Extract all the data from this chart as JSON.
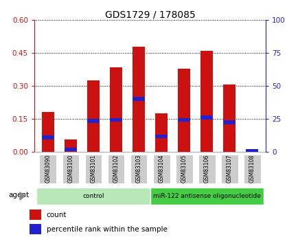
{
  "title": "GDS1729 / 178085",
  "samples": [
    "GSM83090",
    "GSM83100",
    "GSM83101",
    "GSM83102",
    "GSM83103",
    "GSM83104",
    "GSM83105",
    "GSM83106",
    "GSM83107",
    "GSM83108"
  ],
  "count_values": [
    0.18,
    0.055,
    0.325,
    0.385,
    0.48,
    0.175,
    0.38,
    0.46,
    0.305,
    0.005
  ],
  "percentile_values": [
    0.065,
    0.01,
    0.14,
    0.145,
    0.24,
    0.07,
    0.145,
    0.155,
    0.135,
    0.002
  ],
  "groups": [
    {
      "label": "control",
      "start": 0,
      "end": 5,
      "color": "#b8e8b8"
    },
    {
      "label": "miR-122 antisense oligonucleotide",
      "start": 5,
      "end": 10,
      "color": "#44cc44"
    }
  ],
  "ylim_left": [
    0,
    0.6
  ],
  "ylim_right": [
    0,
    100
  ],
  "yticks_left": [
    0,
    0.15,
    0.3,
    0.45,
    0.6
  ],
  "yticks_right": [
    0,
    25,
    50,
    75,
    100
  ],
  "bar_color": "#cc1111",
  "dot_color": "#2222cc",
  "bar_width": 0.55,
  "background_color": "#ffffff",
  "plot_bg_color": "#ffffff",
  "title_color": "#000000",
  "title_fontsize": 10,
  "axis_label_color_left": "#cc1111",
  "axis_label_color_right": "#2222cc",
  "agent_label": "agent",
  "legend_count": "count",
  "legend_percentile": "percentile rank within the sample",
  "tick_gray": "#bbbbbb",
  "group_border_color": "#888888"
}
